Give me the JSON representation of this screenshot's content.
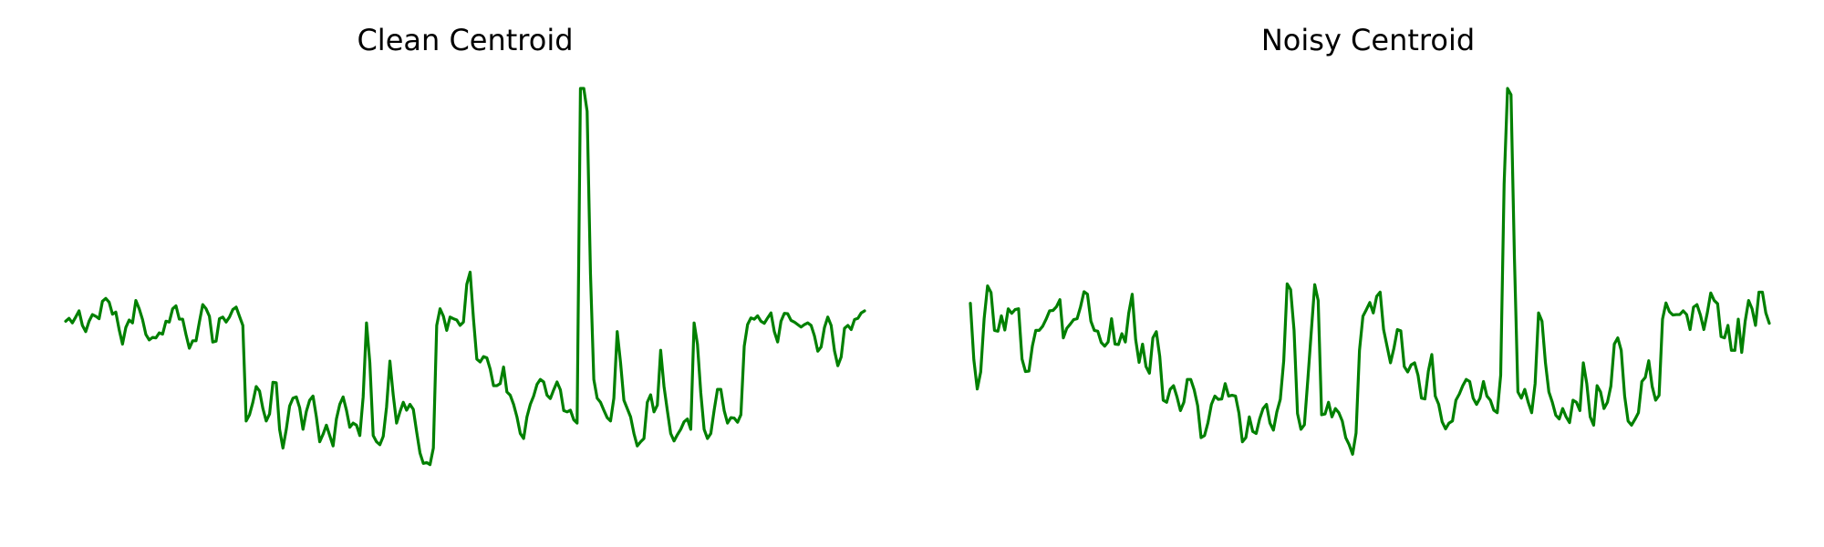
{
  "figure": {
    "line_color": "#008000",
    "background": "#ffffff"
  },
  "chart_data": [
    {
      "type": "line",
      "title": "Clean Centroid",
      "xlabel": "",
      "ylabel": "",
      "axes_visible": false,
      "grid": false,
      "ylim": [
        0,
        1
      ],
      "series": [
        {
          "color": "#008000",
          "values": [
            0.44,
            0.447,
            0.436,
            0.45,
            0.465,
            0.43,
            0.415,
            0.44,
            0.456,
            0.452,
            0.446,
            0.488,
            0.495,
            0.486,
            0.457,
            0.462,
            0.42,
            0.385,
            0.425,
            0.443,
            0.436,
            0.49,
            0.47,
            0.444,
            0.408,
            0.395,
            0.401,
            0.4,
            0.412,
            0.409,
            0.44,
            0.438,
            0.47,
            0.477,
            0.445,
            0.445,
            0.408,
            0.375,
            0.393,
            0.393,
            0.438,
            0.48,
            0.47,
            0.452,
            0.39,
            0.392,
            0.446,
            0.45,
            0.438,
            0.45,
            0.468,
            0.474,
            0.452,
            0.43,
            0.2,
            0.215,
            0.245,
            0.283,
            0.272,
            0.23,
            0.2,
            0.217,
            0.293,
            0.292,
            0.18,
            0.135,
            0.18,
            0.236,
            0.255,
            0.258,
            0.232,
            0.18,
            0.223,
            0.25,
            0.26,
            0.21,
            0.15,
            0.168,
            0.19,
            0.165,
            0.14,
            0.205,
            0.24,
            0.258,
            0.226,
            0.185,
            0.195,
            0.19,
            0.165,
            0.258,
            0.436,
            0.34,
            0.165,
            0.15,
            0.143,
            0.163,
            0.234,
            0.344,
            0.262,
            0.195,
            0.222,
            0.245,
            0.226,
            0.24,
            0.228,
            0.174,
            0.123,
            0.098,
            0.1,
            0.095,
            0.135,
            0.43,
            0.47,
            0.452,
            0.418,
            0.45,
            0.446,
            0.443,
            0.43,
            0.438,
            0.529,
            0.558,
            0.446,
            0.349,
            0.342,
            0.355,
            0.352,
            0.325,
            0.285,
            0.285,
            0.29,
            0.33,
            0.27,
            0.262,
            0.24,
            0.21,
            0.17,
            0.158,
            0.21,
            0.24,
            0.26,
            0.288,
            0.3,
            0.294,
            0.262,
            0.254,
            0.275,
            0.294,
            0.275,
            0.225,
            0.222,
            0.226,
            0.203,
            0.195,
            1.0,
            1.0,
            0.945,
            0.555,
            0.3,
            0.255,
            0.245,
            0.226,
            0.208,
            0.2,
            0.255,
            0.415,
            0.34,
            0.25,
            0.23,
            0.21,
            0.17,
            0.14,
            0.15,
            0.158,
            0.245,
            0.263,
            0.222,
            0.238,
            0.37,
            0.283,
            0.225,
            0.17,
            0.152,
            0.167,
            0.18,
            0.198,
            0.205,
            0.18,
            0.436,
            0.385,
            0.268,
            0.18,
            0.158,
            0.17,
            0.226,
            0.276,
            0.276,
            0.225,
            0.195,
            0.208,
            0.207,
            0.197,
            0.215,
            0.38,
            0.432,
            0.448,
            0.445,
            0.453,
            0.44,
            0.435,
            0.448,
            0.46,
            0.415,
            0.39,
            0.44,
            0.459,
            0.458,
            0.442,
            0.438,
            0.432,
            0.426,
            0.432,
            0.436,
            0.43,
            0.405,
            0.368,
            0.378,
            0.425,
            0.45,
            0.43,
            0.369,
            0.333,
            0.354,
            0.423,
            0.43,
            0.42,
            0.444,
            0.447,
            0.46,
            0.465
          ]
        }
      ]
    },
    {
      "type": "line",
      "title": "Noisy Centroid",
      "xlabel": "",
      "ylabel": "",
      "axes_visible": false,
      "grid": false,
      "ylim": [
        0,
        1
      ],
      "series": [
        {
          "color": "#008000",
          "values": [
            0.483,
            0.348,
            0.277,
            0.318,
            0.446,
            0.525,
            0.509,
            0.418,
            0.416,
            0.453,
            0.419,
            0.47,
            0.459,
            0.468,
            0.47,
            0.349,
            0.319,
            0.32,
            0.38,
            0.418,
            0.418,
            0.428,
            0.445,
            0.465,
            0.466,
            0.475,
            0.492,
            0.4,
            0.423,
            0.433,
            0.444,
            0.446,
            0.475,
            0.511,
            0.505,
            0.44,
            0.418,
            0.416,
            0.389,
            0.38,
            0.39,
            0.446,
            0.385,
            0.384,
            0.41,
            0.39,
            0.46,
            0.505,
            0.396,
            0.341,
            0.385,
            0.331,
            0.315,
            0.4,
            0.415,
            0.355,
            0.25,
            0.245,
            0.276,
            0.285,
            0.258,
            0.225,
            0.245,
            0.3,
            0.3,
            0.275,
            0.237,
            0.16,
            0.165,
            0.196,
            0.24,
            0.26,
            0.252,
            0.253,
            0.29,
            0.26,
            0.262,
            0.26,
            0.219,
            0.15,
            0.16,
            0.21,
            0.175,
            0.17,
            0.205,
            0.23,
            0.24,
            0.195,
            0.178,
            0.222,
            0.252,
            0.345,
            0.53,
            0.516,
            0.418,
            0.218,
            0.18,
            0.191,
            0.3,
            0.415,
            0.528,
            0.49,
            0.215,
            0.217,
            0.245,
            0.21,
            0.23,
            0.22,
            0.2,
            0.16,
            0.143,
            0.12,
            0.171,
            0.37,
            0.452,
            0.468,
            0.485,
            0.46,
            0.5,
            0.51,
            0.42,
            0.38,
            0.34,
            0.375,
            0.42,
            0.417,
            0.331,
            0.318,
            0.335,
            0.34,
            0.31,
            0.255,
            0.253,
            0.32,
            0.36,
            0.26,
            0.24,
            0.198,
            0.181,
            0.195,
            0.2,
            0.25,
            0.265,
            0.285,
            0.3,
            0.295,
            0.255,
            0.24,
            0.255,
            0.295,
            0.26,
            0.25,
            0.226,
            0.22,
            0.31,
            0.77,
            1.0,
            0.985,
            0.59,
            0.27,
            0.255,
            0.276,
            0.245,
            0.22,
            0.29,
            0.46,
            0.44,
            0.34,
            0.27,
            0.245,
            0.214,
            0.205,
            0.23,
            0.21,
            0.196,
            0.25,
            0.245,
            0.225,
            0.34,
            0.29,
            0.21,
            0.19,
            0.285,
            0.27,
            0.23,
            0.245,
            0.284,
            0.385,
            0.4,
            0.37,
            0.26,
            0.2,
            0.19,
            0.204,
            0.22,
            0.295,
            0.305,
            0.345,
            0.283,
            0.25,
            0.262,
            0.445,
            0.484,
            0.463,
            0.455,
            0.456,
            0.456,
            0.465,
            0.456,
            0.42,
            0.474,
            0.48,
            0.455,
            0.42,
            0.46,
            0.508,
            0.49,
            0.482,
            0.403,
            0.4,
            0.43,
            0.37,
            0.37,
            0.445,
            0.365,
            0.44,
            0.49,
            0.47,
            0.43,
            0.51,
            0.51,
            0.46,
            0.435
          ]
        }
      ]
    }
  ]
}
